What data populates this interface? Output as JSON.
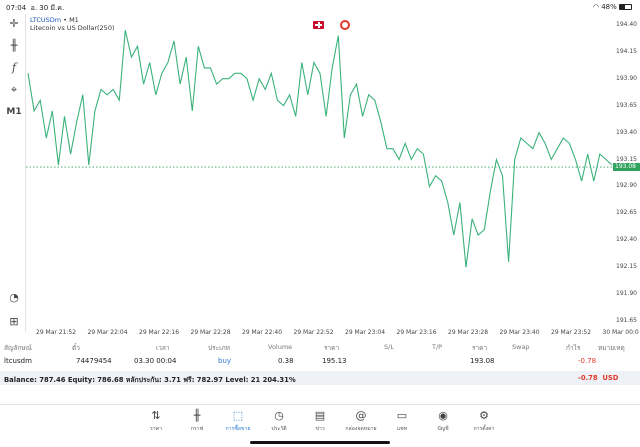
{
  "status_bar": {
    "time": "07:04",
    "date": "อ. 30 มี.ค.",
    "battery": "48%",
    "battery_level": 0.48
  },
  "chart": {
    "symbol": "LTCUSDm",
    "separator": "•",
    "timeframe": "M1",
    "description": "Litecoin vs US Dollar(250)",
    "current_price": "193.08",
    "price_ticks": [
      "194.40",
      "194.15",
      "193.90",
      "193.65",
      "193.40",
      "193.15",
      "192.90",
      "192.65",
      "192.40",
      "192.15",
      "191.90",
      "191.65"
    ],
    "time_ticks": [
      "29 Mar 21:52",
      "29 Mar 22:04",
      "29 Mar 22:16",
      "29 Mar 22:28",
      "29 Mar 22:40",
      "29 Mar 22:52",
      "29 Mar 23:04",
      "29 Mar 23:16",
      "29 Mar 23:28",
      "29 Mar 23:40",
      "29 Mar 23:52",
      "30 Mar 00:0"
    ],
    "line_color": "#3bb27a"
  },
  "chart_data": {
    "type": "line",
    "series": [
      {
        "values": [
          193.95,
          193.6,
          193.7,
          193.35,
          193.6,
          193.1,
          193.55,
          193.2,
          193.5,
          193.75,
          193.1,
          193.6,
          193.8,
          193.75,
          193.8,
          193.7,
          194.35,
          194.1,
          194.2,
          193.85,
          194.05,
          193.75,
          193.95,
          194.05,
          194.25,
          193.85,
          194.1,
          193.6,
          194.2,
          194.0,
          194.0,
          193.85,
          193.9,
          193.9,
          193.95,
          193.95,
          193.9,
          193.7,
          193.9,
          193.8,
          193.95,
          193.7,
          193.65,
          193.75,
          193.55,
          194.05,
          193.75,
          194.05,
          193.95,
          193.55,
          194.0,
          194.3,
          193.35,
          193.75,
          193.85,
          193.55,
          193.75,
          193.7,
          193.5,
          193.25,
          193.25,
          193.15,
          193.3,
          193.15,
          193.25,
          193.2,
          192.9,
          193.0,
          192.95,
          192.75,
          192.45,
          192.75,
          192.15,
          192.6,
          192.45,
          192.5,
          192.85,
          193.15,
          193.0,
          192.2,
          193.15,
          193.35,
          193.3,
          193.25,
          193.4,
          193.3,
          193.15,
          193.25,
          193.35,
          193.3,
          193.15,
          192.95,
          193.2,
          192.95,
          193.2,
          193.15,
          193.1
        ]
      }
    ],
    "ylim": [
      191.55,
      194.5
    ],
    "grid": false
  },
  "trade_table": {
    "headers": [
      "สัญลักษณ์",
      "ตั๋ว",
      "เวลา",
      "ประเภท",
      "Volume",
      "ราคา",
      "S/L",
      "T/P",
      "ราคา",
      "Swap",
      "กำไร",
      "หมายเหตุ"
    ],
    "row": {
      "symbol": "ltcusdm",
      "ticket": "74479454",
      "time": "03.30 00:04",
      "type": "buy",
      "volume": "0.38",
      "open_price": "195.13",
      "current_price": "193.08",
      "profit": "-0.78"
    }
  },
  "balance": {
    "text": "Balance: 787.46 Equity: 786.68 หลักประกัน: 3.71 ฟรี: 782.97 Level: 21 204.31%",
    "profit": "-0.78",
    "currency": "USD"
  },
  "nav": [
    {
      "label": "ราคา",
      "icon": "quotes-icon"
    },
    {
      "label": "กราฟ",
      "icon": "chart-icon"
    },
    {
      "label": "การซื้อขาย",
      "icon": "trade-icon"
    },
    {
      "label": "ประวัติ",
      "icon": "history-icon"
    },
    {
      "label": "ข่าว",
      "icon": "news-icon"
    },
    {
      "label": "กล่องจดหมาย",
      "icon": "mailbox-icon"
    },
    {
      "label": "แชท",
      "icon": "chat-icon"
    },
    {
      "label": "บัญชี",
      "icon": "account-icon"
    },
    {
      "label": "การตั้งค่า",
      "icon": "settings-icon"
    }
  ]
}
